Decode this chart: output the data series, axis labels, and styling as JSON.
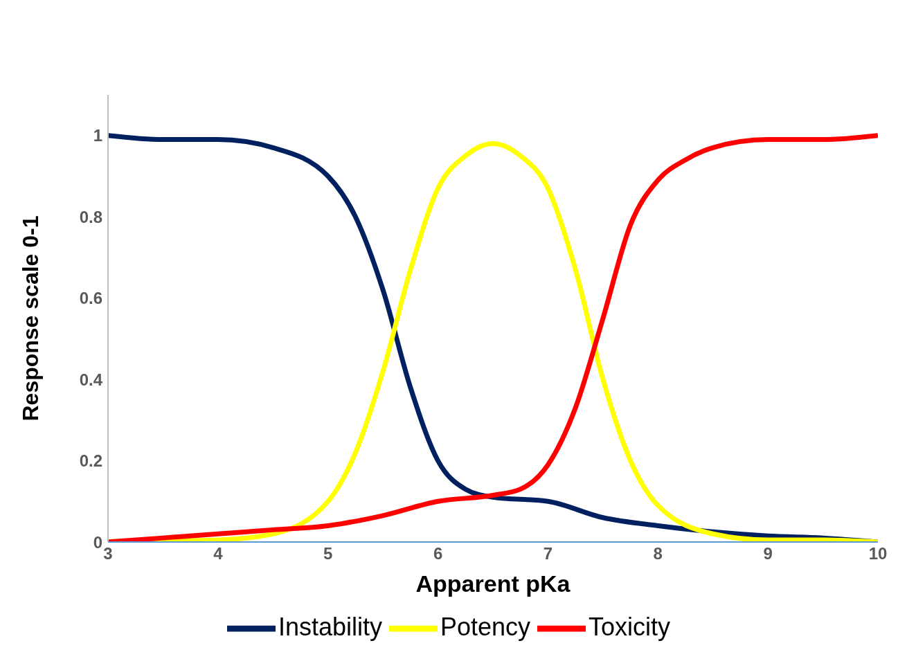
{
  "chart_data": {
    "type": "line",
    "xlabel": "Apparent pKa",
    "ylabel": "Response scale 0-1",
    "xlim": [
      3,
      10
    ],
    "xticks": [
      3,
      4,
      5,
      6,
      7,
      8,
      9,
      10
    ],
    "ylim": [
      0,
      1.1
    ],
    "yticks": [
      0,
      0.2,
      0.4,
      0.6,
      0.8,
      1
    ],
    "grid": false,
    "legend": "bottom",
    "marker": "none",
    "line_style": "solid",
    "series": [
      {
        "name": "Instability",
        "color": "#002060",
        "x": [
          3,
          3.5,
          4,
          4.5,
          5,
          5.25,
          5.5,
          5.75,
          6,
          6.25,
          6.5,
          7,
          7.5,
          8,
          8.5,
          9,
          9.5,
          10
        ],
        "values": [
          1.0,
          0.99,
          0.99,
          0.97,
          0.9,
          0.8,
          0.62,
          0.38,
          0.2,
          0.13,
          0.11,
          0.1,
          0.06,
          0.04,
          0.025,
          0.015,
          0.01,
          0.0
        ]
      },
      {
        "name": "Potency",
        "color": "#ffff00",
        "x": [
          3,
          4,
          4.5,
          5,
          5.25,
          5.5,
          5.75,
          6,
          6.25,
          6.5,
          6.75,
          7,
          7.25,
          7.5,
          7.75,
          8,
          8.5,
          9,
          9.5,
          10
        ],
        "values": [
          0,
          0.005,
          0.02,
          0.1,
          0.22,
          0.42,
          0.67,
          0.87,
          0.95,
          0.98,
          0.95,
          0.87,
          0.67,
          0.4,
          0.2,
          0.09,
          0.02,
          0.005,
          0.005,
          0
        ]
      },
      {
        "name": "Toxicity",
        "color": "#ff0000",
        "x": [
          3,
          3.5,
          4,
          4.5,
          5,
          5.5,
          6,
          6.5,
          6.75,
          7,
          7.25,
          7.5,
          7.75,
          8,
          8.25,
          8.5,
          9,
          9.5,
          10
        ],
        "values": [
          0,
          0.01,
          0.02,
          0.03,
          0.04,
          0.065,
          0.1,
          0.115,
          0.13,
          0.19,
          0.33,
          0.55,
          0.78,
          0.89,
          0.94,
          0.97,
          0.99,
          0.99,
          1.0
        ]
      }
    ]
  }
}
